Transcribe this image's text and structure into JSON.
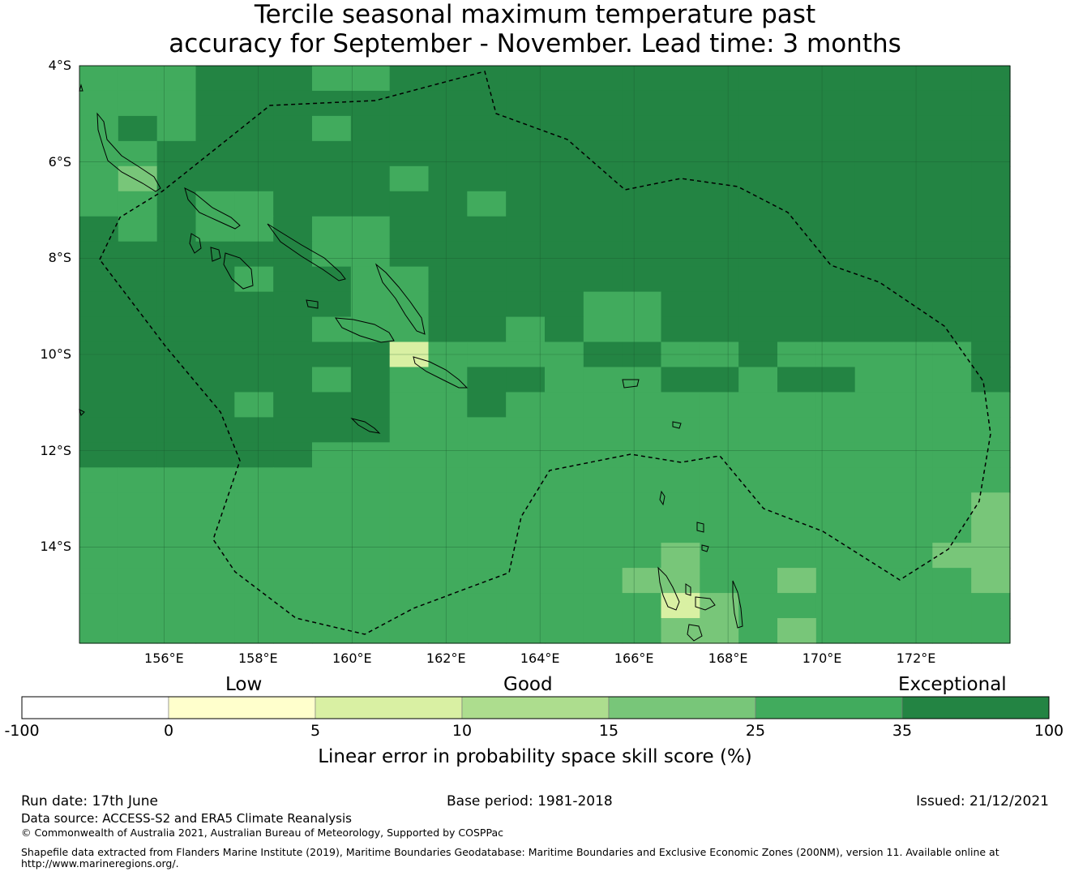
{
  "title": {
    "line1": "Tercile seasonal maximum temperature past",
    "line2": "accuracy for September - November. Lead time: 3 months"
  },
  "map": {
    "lat_labels": [
      "4°S",
      "6°S",
      "8°S",
      "10°S",
      "12°S",
      "14°S"
    ],
    "lon_labels": [
      "156°E",
      "158°E",
      "160°E",
      "162°E",
      "164°E",
      "166°E",
      "168°E",
      "170°E",
      "172°E"
    ],
    "extent": {
      "lon_min": 154.2,
      "lon_max": 174.0,
      "lat_min": -16.0,
      "lat_max": -4.0
    },
    "skill_categories": [
      {
        "range": "25-35",
        "color": "#41ab5d"
      },
      {
        "range": "35-100",
        "color": "#238443"
      },
      {
        "range": "15-25",
        "color": "#78c679"
      },
      {
        "range": "5-10",
        "color": "#d9f0a3"
      }
    ]
  },
  "colorbar": {
    "category_labels": {
      "low": "Low",
      "good": "Good",
      "exceptional": "Exceptional"
    },
    "ticks": [
      "-100",
      "0",
      "5",
      "10",
      "15",
      "25",
      "35",
      "100"
    ],
    "colors": [
      "#ffffff",
      "#ffffcc",
      "#d9f0a3",
      "#addd8e",
      "#78c679",
      "#41ab5d",
      "#238443"
    ],
    "label": "Linear error in probability space skill score (%)"
  },
  "footer": {
    "run_date": "Run date: 17th June",
    "base_period": "Base period: 1981-2018",
    "issued": "Issued: 21/12/2021",
    "data_source": "Data source: ACCESS-S2 and ERA5 Climate Reanalysis",
    "copyright": "© Commonwealth of Australia 2021, Australian Bureau of Meteorology, Supported by COSPPac",
    "shapefile_line1": "Shapefile data extracted from Flanders Marine Institute (2019), Maritime Boundaries Geodatabase: Maritime Boundaries and Exclusive Economic Zones (200NM), version 11. Available online at",
    "shapefile_line2": "http://www.marineregions.org/."
  }
}
